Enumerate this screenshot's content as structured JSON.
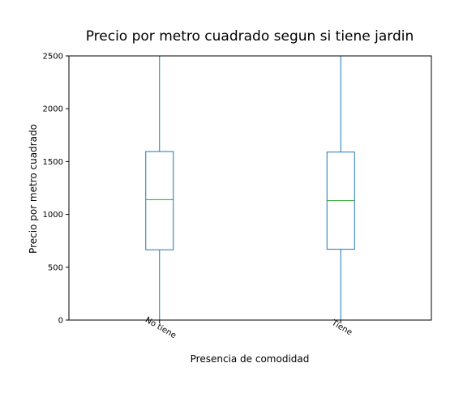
{
  "chart_data": {
    "type": "box",
    "title": "Precio por metro cuadrado segun si tiene jardin",
    "xlabel": "Presencia de comodidad",
    "ylabel": "Precio por metro cuadrado",
    "categories": [
      "No tiene",
      "Tiene"
    ],
    "ylim": [
      0,
      2500
    ],
    "yticks": [
      0,
      500,
      1000,
      1500,
      2000,
      2500
    ],
    "grid": false,
    "boxes": [
      {
        "category": "No tiene",
        "whisker_low": 0,
        "q1": 665,
        "median": 1140,
        "q3": 1595,
        "whisker_high": 2500
      },
      {
        "category": "Tiene",
        "whisker_low": 0,
        "q1": 670,
        "median": 1130,
        "q3": 1590,
        "whisker_high": 2500
      }
    ],
    "colors": {
      "box": "#1f77b4",
      "median": "#2ca02c",
      "axes": "#000000"
    }
  }
}
